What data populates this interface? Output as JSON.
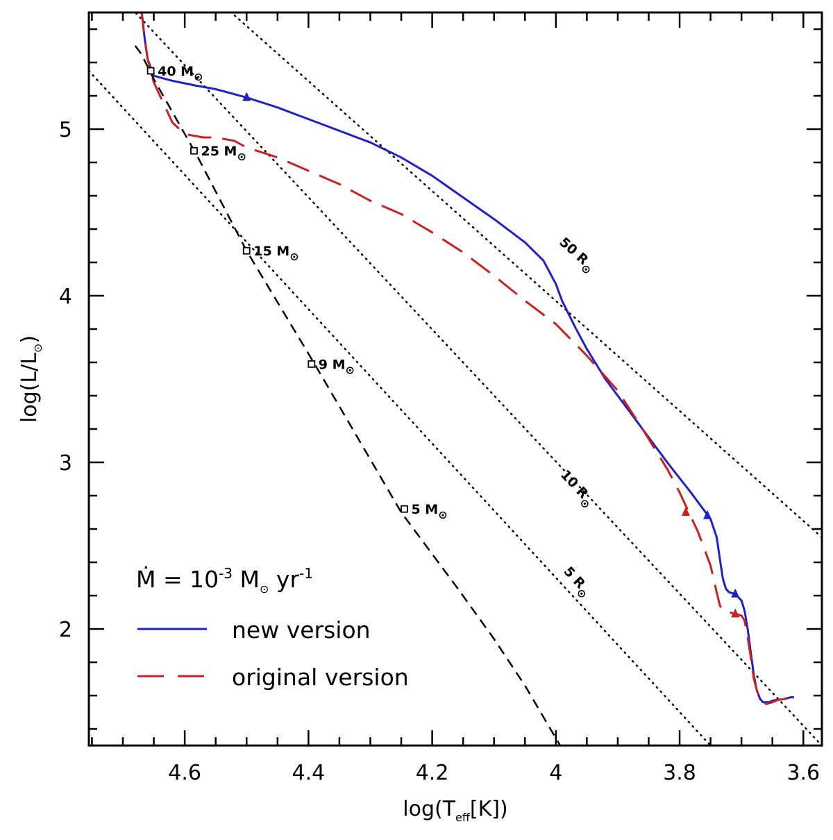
{
  "chart_data": {
    "type": "line",
    "title": "",
    "xlabel": {
      "main": "log(T",
      "sub": "eff",
      "rest": "[K])"
    },
    "ylabel": {
      "main": "log(L/L",
      "sub": "⊙",
      "rest": ")"
    },
    "xlim": [
      4.755,
      3.57
    ],
    "ylim": [
      1.3,
      5.7
    ],
    "x_reversed": true,
    "x_ticks": [
      {
        "value": 4.6,
        "label": "4.6"
      },
      {
        "value": 4.4,
        "label": "4.4"
      },
      {
        "value": 4.2,
        "label": "4.2"
      },
      {
        "value": 4.0,
        "label": "4"
      },
      {
        "value": 3.8,
        "label": "3.8"
      },
      {
        "value": 3.6,
        "label": "3.6"
      }
    ],
    "y_ticks": [
      {
        "value": 2,
        "label": "2"
      },
      {
        "value": 3,
        "label": "3"
      },
      {
        "value": 4,
        "label": "4"
      },
      {
        "value": 5,
        "label": "5"
      }
    ],
    "x_minor_step": 0.05,
    "y_minor_step": 0.2,
    "grid": false,
    "legend": {
      "position": "bottom-left",
      "title": {
        "pre": "Ṁ  =  10",
        "sup": "-3",
        "mid": " M",
        "sun": "⊙",
        "post": " yr",
        "sup2": "-1"
      },
      "entries": [
        {
          "label": "new version",
          "color": "#1f1fcc",
          "dash": "solid"
        },
        {
          "label": "original version",
          "color": "#cc1f1f",
          "dash": "long-dash"
        }
      ]
    },
    "series": [
      {
        "name": "new version",
        "color": "#1f1fcc",
        "style": "solid",
        "x": [
          4.67,
          4.665,
          4.66,
          4.65,
          4.62,
          4.58,
          4.55,
          4.5,
          4.45,
          4.4,
          4.35,
          4.3,
          4.25,
          4.2,
          4.15,
          4.1,
          4.05,
          4.02,
          4.0,
          3.99,
          3.97,
          3.95,
          3.92,
          3.9,
          3.86,
          3.82,
          3.78,
          3.75,
          3.74,
          3.735,
          3.73,
          3.725,
          3.72,
          3.71,
          3.7,
          3.695,
          3.69,
          3.685,
          3.68,
          3.675,
          3.67,
          3.665,
          3.66,
          3.655,
          3.65,
          3.64,
          3.63,
          3.62,
          3.615
        ],
        "y": [
          5.72,
          5.55,
          5.42,
          5.32,
          5.29,
          5.26,
          5.24,
          5.19,
          5.13,
          5.06,
          4.99,
          4.92,
          4.83,
          4.72,
          4.59,
          4.46,
          4.32,
          4.21,
          4.07,
          3.97,
          3.82,
          3.68,
          3.5,
          3.4,
          3.2,
          3.0,
          2.81,
          2.66,
          2.55,
          2.42,
          2.3,
          2.24,
          2.22,
          2.21,
          2.17,
          2.11,
          2.0,
          1.86,
          1.72,
          1.63,
          1.58,
          1.56,
          1.56,
          1.56,
          1.57,
          1.575,
          1.58,
          1.59,
          1.59
        ]
      },
      {
        "name": "original version",
        "color": "#cc1f1f",
        "style": "long-dash",
        "x": [
          4.67,
          4.665,
          4.66,
          4.65,
          4.62,
          4.6,
          4.57,
          4.55,
          4.52,
          4.5,
          4.45,
          4.4,
          4.35,
          4.3,
          4.25,
          4.2,
          4.15,
          4.1,
          4.05,
          4.0,
          3.95,
          3.9,
          3.86,
          3.82,
          3.8,
          3.79,
          3.77,
          3.75,
          3.74,
          3.735,
          3.73,
          3.725,
          3.72,
          3.71,
          3.7,
          3.695,
          3.69,
          3.685,
          3.68,
          3.675,
          3.67,
          3.665,
          3.66,
          3.655,
          3.65,
          3.64,
          3.63,
          3.62,
          3.615
        ],
        "y": [
          5.72,
          5.55,
          5.42,
          5.28,
          5.04,
          4.97,
          4.95,
          4.95,
          4.93,
          4.89,
          4.83,
          4.75,
          4.67,
          4.57,
          4.49,
          4.38,
          4.26,
          4.12,
          3.97,
          3.83,
          3.64,
          3.43,
          3.2,
          2.96,
          2.82,
          2.74,
          2.58,
          2.38,
          2.22,
          2.14,
          2.11,
          2.1,
          2.1,
          2.09,
          2.08,
          2.05,
          1.95,
          1.83,
          1.7,
          1.63,
          1.58,
          1.56,
          1.55,
          1.555,
          1.56,
          1.575,
          1.58,
          1.595,
          1.595
        ]
      },
      {
        "name": "ZAMS",
        "color": "#000000",
        "style": "short-dash",
        "x": [
          4.68,
          4.67,
          4.65,
          4.58,
          4.5,
          4.39,
          4.25,
          4.16,
          4.1,
          4.05,
          3.993
        ],
        "y": [
          5.5,
          5.45,
          5.3,
          4.84,
          4.27,
          3.59,
          2.7,
          2.25,
          1.94,
          1.66,
          1.3
        ]
      }
    ],
    "iso_radius_lines": [
      {
        "label": "50",
        "unit": "R",
        "sun": "⊙",
        "x": [
          4.555,
          3.57
        ],
        "y": [
          5.8,
          2.55
        ],
        "label_x": 3.97,
        "label_y": 4.23
      },
      {
        "label": "10",
        "unit": "R",
        "sun": "⊙",
        "x": [
          4.705,
          3.57
        ],
        "y": [
          5.8,
          1.3
        ],
        "label_x": 3.97,
        "label_y": 2.83
      },
      {
        "label": "5",
        "unit": "R",
        "sun": "⊙",
        "x": [
          4.755,
          3.75
        ],
        "y": [
          5.35,
          1.3
        ],
        "label_x": 3.97,
        "label_y": 2.27
      }
    ],
    "mass_markers": [
      {
        "label": "40 M",
        "sun": "⊙",
        "x": 4.655,
        "y": 5.35
      },
      {
        "label": "25 M",
        "sun": "⊙",
        "x": 4.585,
        "y": 4.87
      },
      {
        "label": "15 M",
        "sun": "⊙",
        "x": 4.5,
        "y": 4.27
      },
      {
        "label": "9 M",
        "sun": "⊙",
        "x": 4.395,
        "y": 3.59
      },
      {
        "label": "5 M",
        "sun": "⊙",
        "x": 4.245,
        "y": 2.72
      }
    ],
    "arrows": [
      {
        "series": "new version",
        "x": 4.5,
        "y": 5.19,
        "color": "#1f1fcc"
      },
      {
        "series": "new version",
        "x": 3.755,
        "y": 2.68,
        "color": "#1f1fcc"
      },
      {
        "series": "new version",
        "x": 3.71,
        "y": 2.21,
        "color": "#1f1fcc"
      },
      {
        "series": "original version",
        "x": 3.79,
        "y": 2.7,
        "color": "#cc1f1f"
      },
      {
        "series": "original version",
        "x": 3.71,
        "y": 2.09,
        "color": "#cc1f1f"
      }
    ]
  }
}
